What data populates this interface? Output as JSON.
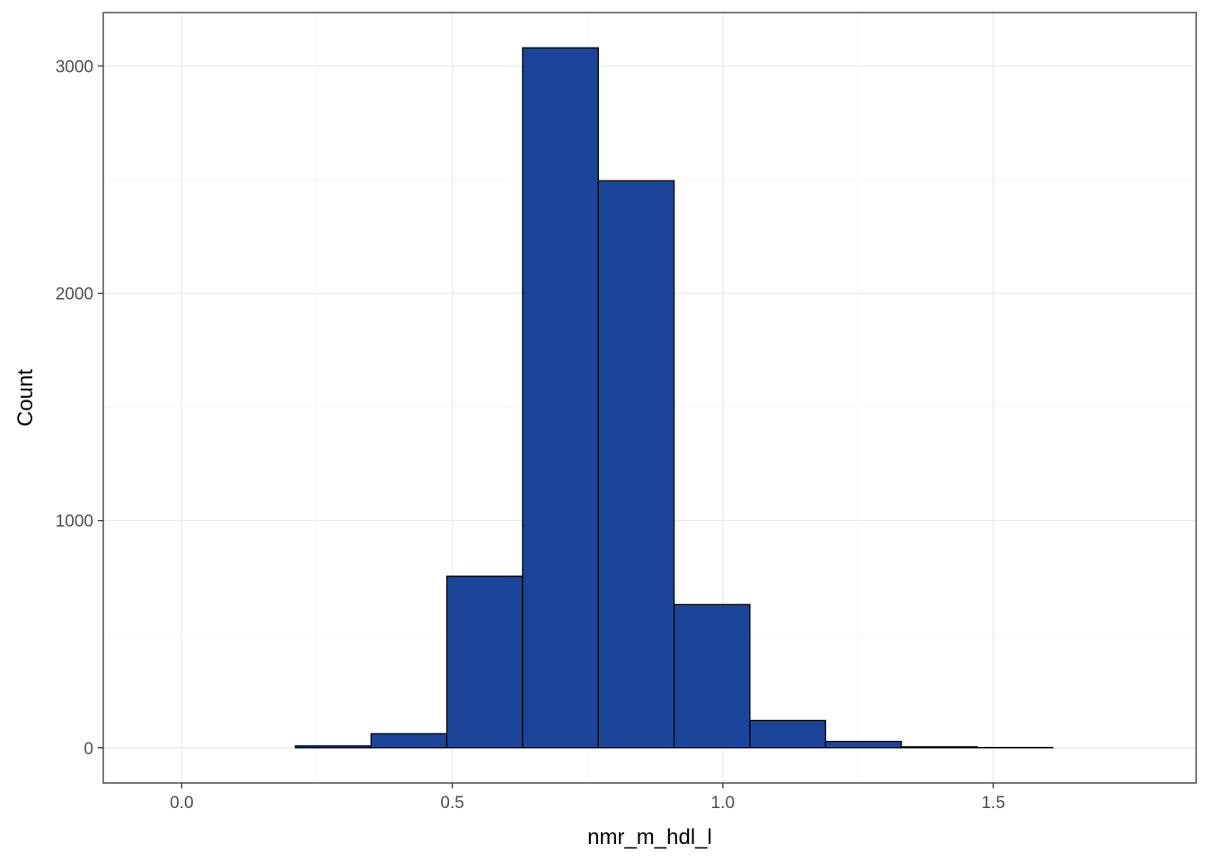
{
  "chart_data": {
    "type": "bar",
    "subtype": "histogram",
    "title": "",
    "xlabel": "nmr_m_hdl_l",
    "ylabel": "Count",
    "xlim": [
      -0.145,
      1.875
    ],
    "ylim": [
      -155,
      3235
    ],
    "x_ticks": [
      0.0,
      0.5,
      1.0,
      1.5
    ],
    "x_tick_labels": [
      "0.0",
      "0.5",
      "1.0",
      "1.5"
    ],
    "y_ticks": [
      0,
      1000,
      2000,
      3000
    ],
    "y_tick_labels": [
      "0",
      "1000",
      "2000",
      "3000"
    ],
    "grid": true,
    "bins": [
      {
        "x0": -0.07,
        "x1": 0.07,
        "count": 0
      },
      {
        "x0": 0.07,
        "x1": 0.21,
        "count": 0
      },
      {
        "x0": 0.21,
        "x1": 0.35,
        "count": 8
      },
      {
        "x0": 0.35,
        "x1": 0.49,
        "count": 62
      },
      {
        "x0": 0.49,
        "x1": 0.63,
        "count": 755
      },
      {
        "x0": 0.63,
        "x1": 0.77,
        "count": 3080
      },
      {
        "x0": 0.77,
        "x1": 0.91,
        "count": 2495
      },
      {
        "x0": 0.91,
        "x1": 1.05,
        "count": 630
      },
      {
        "x0": 1.05,
        "x1": 1.19,
        "count": 120
      },
      {
        "x0": 1.19,
        "x1": 1.33,
        "count": 28
      },
      {
        "x0": 1.33,
        "x1": 1.47,
        "count": 4
      },
      {
        "x0": 1.47,
        "x1": 1.61,
        "count": 1
      }
    ],
    "colors": {
      "fill": "#1a4599",
      "stroke": "#000000",
      "grid_major": "#ebebeb",
      "grid_minor": "#f5f5f5",
      "panel_border": "#333333"
    }
  }
}
